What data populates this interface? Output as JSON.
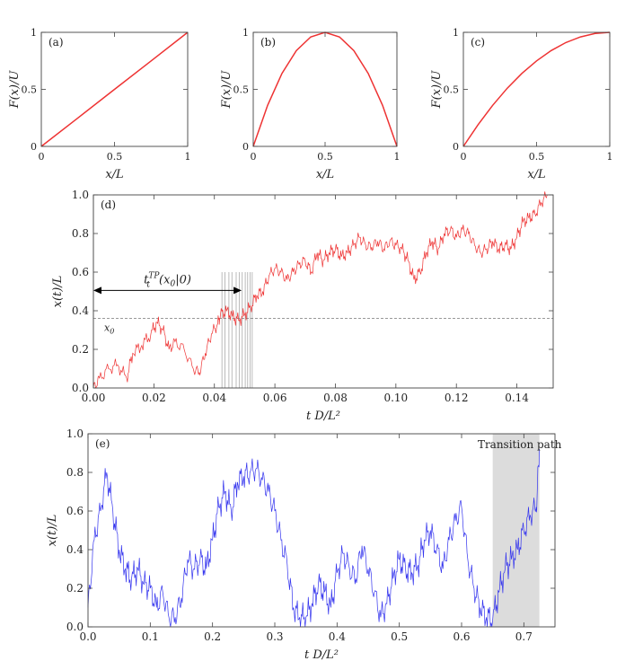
{
  "colors": {
    "red": "#ee3333",
    "blue": "#3333ee",
    "axis": "#444444",
    "vline": "#aaaaaa",
    "band": "#dcdcdc"
  },
  "chart_data": [
    {
      "type": "line",
      "panel_label": "(a)",
      "xlabel": "x/L",
      "ylabel": "F(x)/U",
      "xlim": [
        0,
        1
      ],
      "ylim": [
        0,
        1
      ],
      "x_ticks": [
        "0",
        "0.5",
        "1"
      ],
      "y_ticks": [
        "0",
        "0.5",
        "1"
      ],
      "series": [
        {
          "x": [
            0,
            0.25,
            0.5,
            0.75,
            1
          ],
          "y": [
            0,
            0.25,
            0.5,
            0.75,
            1
          ]
        }
      ]
    },
    {
      "type": "line",
      "panel_label": "(b)",
      "xlabel": "x/L",
      "ylabel": "F(x)/U",
      "xlim": [
        0,
        1
      ],
      "ylim": [
        0,
        1
      ],
      "x_ticks": [
        "0",
        "0.5",
        "1"
      ],
      "y_ticks": [
        "0",
        "0.5",
        "1"
      ],
      "series": [
        {
          "x": [
            0,
            0.1,
            0.2,
            0.3,
            0.4,
            0.5,
            0.6,
            0.7,
            0.8,
            0.9,
            1
          ],
          "y": [
            0,
            0.36,
            0.64,
            0.84,
            0.96,
            1,
            0.96,
            0.84,
            0.64,
            0.36,
            0
          ]
        }
      ]
    },
    {
      "type": "line",
      "panel_label": "(c)",
      "xlabel": "x/L",
      "ylabel": "F(x)/U",
      "xlim": [
        0,
        1
      ],
      "ylim": [
        0,
        1
      ],
      "x_ticks": [
        "0",
        "0.5",
        "1"
      ],
      "y_ticks": [
        "0",
        "0.5",
        "1"
      ],
      "series": [
        {
          "x": [
            0,
            0.1,
            0.2,
            0.3,
            0.4,
            0.5,
            0.6,
            0.7,
            0.8,
            0.9,
            1
          ],
          "y": [
            0,
            0.19,
            0.36,
            0.51,
            0.64,
            0.75,
            0.84,
            0.91,
            0.96,
            0.99,
            1
          ]
        }
      ]
    },
    {
      "type": "line",
      "panel_label": "(d)",
      "xlabel": "t D/L²",
      "ylabel": "x(t)/L",
      "xlim": [
        0,
        0.152
      ],
      "ylim": [
        0,
        1
      ],
      "x_ticks": [
        "0.00",
        "0.02",
        "0.04",
        "0.06",
        "0.08",
        "0.10",
        "0.12",
        "0.14"
      ],
      "y_ticks": [
        "0.0",
        "0.2",
        "0.4",
        "0.6",
        "0.8",
        "1.0"
      ],
      "x0_level": 0.36,
      "x0_label": "x0",
      "annotation": "t_t^TP(x0|0)",
      "arrow_range": [
        0,
        0.049
      ],
      "vertical_lines": [
        0.0425,
        0.0435,
        0.0448,
        0.0458,
        0.0472,
        0.0482,
        0.0492,
        0.0502,
        0.051,
        0.0518,
        0.0525
      ],
      "series": [
        {
          "x": [
            0,
            0.002,
            0.005,
            0.008,
            0.011,
            0.013,
            0.016,
            0.019,
            0.021,
            0.023,
            0.025,
            0.027,
            0.03,
            0.033,
            0.035,
            0.037,
            0.039,
            0.041,
            0.042,
            0.044,
            0.046,
            0.048,
            0.05,
            0.052,
            0.054,
            0.056,
            0.058,
            0.06,
            0.062,
            0.064,
            0.066,
            0.068,
            0.07,
            0.072,
            0.074,
            0.076,
            0.078,
            0.08,
            0.082,
            0.084,
            0.086,
            0.088,
            0.09,
            0.092,
            0.094,
            0.096,
            0.098,
            0.1,
            0.102,
            0.104,
            0.106,
            0.108,
            0.11,
            0.112,
            0.114,
            0.116,
            0.118,
            0.12,
            0.122,
            0.124,
            0.126,
            0.128,
            0.13,
            0.132,
            0.134,
            0.136,
            0.138,
            0.14,
            0.142,
            0.144,
            0.146,
            0.148,
            0.15
          ],
          "y": [
            0,
            0.05,
            0.1,
            0.12,
            0.05,
            0.18,
            0.22,
            0.28,
            0.34,
            0.3,
            0.2,
            0.24,
            0.2,
            0.1,
            0.08,
            0.18,
            0.28,
            0.33,
            0.38,
            0.4,
            0.37,
            0.35,
            0.38,
            0.42,
            0.48,
            0.5,
            0.58,
            0.62,
            0.6,
            0.56,
            0.6,
            0.64,
            0.66,
            0.6,
            0.7,
            0.66,
            0.7,
            0.72,
            0.68,
            0.7,
            0.74,
            0.78,
            0.74,
            0.73,
            0.76,
            0.72,
            0.76,
            0.74,
            0.72,
            0.66,
            0.56,
            0.6,
            0.7,
            0.76,
            0.72,
            0.8,
            0.82,
            0.78,
            0.82,
            0.8,
            0.74,
            0.7,
            0.72,
            0.76,
            0.72,
            0.74,
            0.72,
            0.78,
            0.86,
            0.88,
            0.9,
            0.96,
            1.0
          ]
        }
      ]
    },
    {
      "type": "line",
      "panel_label": "(e)",
      "xlabel": "t D/L²",
      "ylabel": "x(t)/L",
      "xlim": [
        0,
        0.75
      ],
      "ylim": [
        0,
        1
      ],
      "x_ticks": [
        "0.0",
        "0.1",
        "0.2",
        "0.3",
        "0.4",
        "0.5",
        "0.6",
        "0.7"
      ],
      "y_ticks": [
        "0.0",
        "0.2",
        "0.4",
        "0.6",
        "0.8",
        "1.0"
      ],
      "shaded_region": [
        0.65,
        0.725
      ],
      "annotation": "Transition path",
      "series": [
        {
          "x": [
            0,
            0.01,
            0.02,
            0.03,
            0.04,
            0.05,
            0.06,
            0.07,
            0.08,
            0.09,
            0.1,
            0.11,
            0.12,
            0.13,
            0.14,
            0.15,
            0.16,
            0.17,
            0.18,
            0.19,
            0.2,
            0.21,
            0.22,
            0.23,
            0.24,
            0.25,
            0.26,
            0.27,
            0.28,
            0.29,
            0.3,
            0.31,
            0.32,
            0.33,
            0.34,
            0.35,
            0.36,
            0.37,
            0.38,
            0.39,
            0.4,
            0.41,
            0.42,
            0.43,
            0.44,
            0.45,
            0.46,
            0.47,
            0.48,
            0.49,
            0.5,
            0.51,
            0.52,
            0.53,
            0.54,
            0.55,
            0.56,
            0.57,
            0.58,
            0.59,
            0.6,
            0.61,
            0.62,
            0.63,
            0.64,
            0.65,
            0.66,
            0.67,
            0.68,
            0.69,
            0.7,
            0.71,
            0.72,
            0.725
          ],
          "y": [
            0.1,
            0.45,
            0.6,
            0.8,
            0.6,
            0.4,
            0.3,
            0.25,
            0.3,
            0.22,
            0.2,
            0.1,
            0.18,
            0.05,
            0.05,
            0.15,
            0.35,
            0.3,
            0.35,
            0.3,
            0.45,
            0.62,
            0.7,
            0.6,
            0.75,
            0.78,
            0.8,
            0.82,
            0.76,
            0.7,
            0.6,
            0.45,
            0.32,
            0.1,
            0.05,
            0.05,
            0.12,
            0.22,
            0.18,
            0.1,
            0.28,
            0.38,
            0.3,
            0.25,
            0.42,
            0.3,
            0.18,
            0.05,
            0.12,
            0.25,
            0.35,
            0.3,
            0.28,
            0.32,
            0.45,
            0.5,
            0.4,
            0.3,
            0.45,
            0.55,
            0.62,
            0.35,
            0.2,
            0.1,
            0.05,
            0.04,
            0.18,
            0.3,
            0.35,
            0.4,
            0.5,
            0.58,
            0.62,
            0.92
          ]
        }
      ]
    }
  ]
}
